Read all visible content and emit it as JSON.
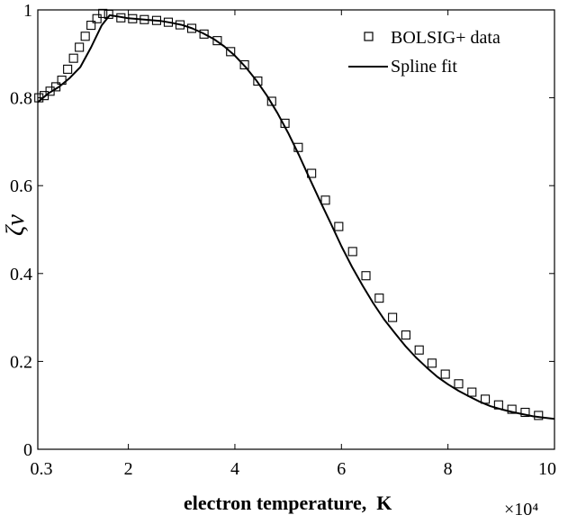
{
  "chart_data": {
    "type": "line",
    "title": "",
    "xlabel": "electron temperature,  K",
    "ylabel": "ζv",
    "x_multiplier": "×10⁴",
    "xlim": [
      3000,
      100000
    ],
    "ylim": [
      0,
      1
    ],
    "x_ticks": [
      3000,
      20000,
      40000,
      60000,
      80000,
      100000
    ],
    "x_tick_labels": [
      "0.3",
      "2",
      "4",
      "6",
      "8",
      "10"
    ],
    "y_ticks": [
      0,
      0.2,
      0.4,
      0.6,
      0.8,
      1
    ],
    "y_tick_labels": [
      "0",
      "0.2",
      "0.4",
      "0.6",
      "0.8",
      "1"
    ],
    "grid": false,
    "legend_position": "top-right",
    "series": [
      {
        "name": "BOLSIG+ data",
        "style": "markers",
        "marker": "square",
        "color": "#000000",
        "x": [
          3200,
          4200,
          5300,
          6400,
          7500,
          8600,
          9700,
          10800,
          11900,
          13000,
          14100,
          15200,
          16300,
          18600,
          20800,
          23000,
          25300,
          27500,
          29700,
          31900,
          34200,
          36700,
          39200,
          41800,
          44300,
          46900,
          49400,
          51900,
          54400,
          57000,
          59500,
          62100,
          64600,
          67100,
          69600,
          72100,
          74600,
          77000,
          79500,
          82000,
          84500,
          87000,
          89500,
          92000,
          94500,
          97000
        ],
        "y": [
          0.8,
          0.805,
          0.815,
          0.825,
          0.84,
          0.865,
          0.89,
          0.915,
          0.94,
          0.965,
          0.98,
          0.992,
          0.99,
          0.982,
          0.98,
          0.978,
          0.976,
          0.972,
          0.966,
          0.958,
          0.945,
          0.93,
          0.905,
          0.875,
          0.838,
          0.792,
          0.742,
          0.687,
          0.628,
          0.567,
          0.507,
          0.45,
          0.395,
          0.344,
          0.3,
          0.26,
          0.226,
          0.196,
          0.171,
          0.149,
          0.13,
          0.114,
          0.101,
          0.091,
          0.084,
          0.077
        ]
      },
      {
        "name": "Spline fit",
        "style": "line",
        "color": "#000000",
        "x": [
          3000,
          5000,
          7000,
          9000,
          11000,
          13000,
          15000,
          16500,
          18000,
          20000,
          22000,
          24000,
          26000,
          28000,
          30000,
          32000,
          34000,
          36000,
          38000,
          40000,
          42000,
          44000,
          46000,
          48000,
          50000,
          52000,
          54000,
          56000,
          58000,
          60000,
          62000,
          64000,
          66000,
          68000,
          70000,
          72000,
          74000,
          76000,
          78000,
          80000,
          82000,
          84000,
          86000,
          88000,
          90000,
          92000,
          94000,
          96000,
          98000,
          100000
        ],
        "y": [
          0.79,
          0.81,
          0.825,
          0.845,
          0.87,
          0.915,
          0.965,
          0.988,
          0.985,
          0.981,
          0.979,
          0.977,
          0.975,
          0.971,
          0.966,
          0.958,
          0.947,
          0.934,
          0.917,
          0.896,
          0.87,
          0.84,
          0.805,
          0.765,
          0.72,
          0.67,
          0.617,
          0.565,
          0.514,
          0.462,
          0.415,
          0.372,
          0.332,
          0.296,
          0.265,
          0.235,
          0.209,
          0.186,
          0.165,
          0.148,
          0.133,
          0.12,
          0.108,
          0.098,
          0.091,
          0.085,
          0.08,
          0.075,
          0.072,
          0.069
        ]
      }
    ]
  }
}
